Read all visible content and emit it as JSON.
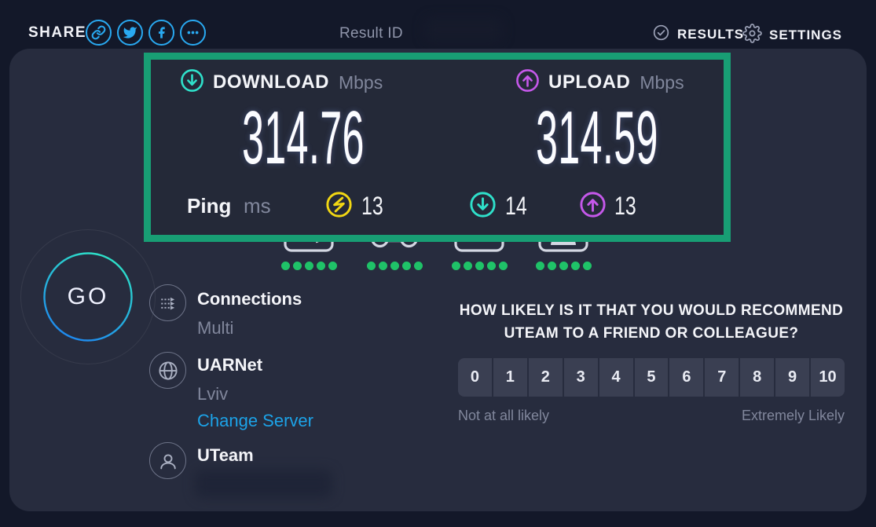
{
  "topbar": {
    "share_label": "SHARE",
    "result_id_label": "Result ID",
    "results_label": "RESULTS",
    "settings_label": "SETTINGS",
    "share_icons": [
      "link-icon",
      "twitter-icon",
      "facebook-icon",
      "more-icon"
    ]
  },
  "panel": {
    "download": {
      "label": "DOWNLOAD",
      "unit": "Mbps",
      "value": "314.76"
    },
    "upload": {
      "label": "UPLOAD",
      "unit": "Mbps",
      "value": "314.59"
    },
    "ping": {
      "label": "Ping",
      "unit": "ms",
      "idle_value": "13",
      "download_value": "14",
      "upload_value": "13"
    }
  },
  "activities": {
    "items": [
      {
        "name": "browsing",
        "rating": 5
      },
      {
        "name": "gaming",
        "rating": 5
      },
      {
        "name": "streaming",
        "rating": 5
      },
      {
        "name": "video-chatting",
        "rating": 5
      }
    ]
  },
  "go": {
    "label": "GO"
  },
  "info": {
    "connections": {
      "title": "Connections",
      "subtitle": "Multi"
    },
    "server": {
      "name": "UARNet",
      "city": "Lviv",
      "change_label": "Change Server"
    },
    "isp": {
      "name": "UTeam"
    }
  },
  "survey": {
    "question_line1": "HOW LIKELY IS IT THAT YOU WOULD RECOMMEND",
    "question_line2": "UTEAM TO A FRIEND OR COLLEAGUE?",
    "scale": [
      "0",
      "1",
      "2",
      "3",
      "4",
      "5",
      "6",
      "7",
      "8",
      "9",
      "10"
    ],
    "min_label": "Not at all likely",
    "max_label": "Extremely Likely"
  },
  "colors": {
    "background": "#131829",
    "card": "#272c3e",
    "panel": "#242938",
    "highlight_green": "#189e74",
    "accent_blue": "#29a9f1",
    "download_cyan": "#2fe0ca",
    "upload_purple": "#c558ea",
    "latency_yellow": "#f2d713",
    "rating_green": "#1fc268",
    "link_blue": "#1ca3e8",
    "muted_text": "#81879c"
  }
}
